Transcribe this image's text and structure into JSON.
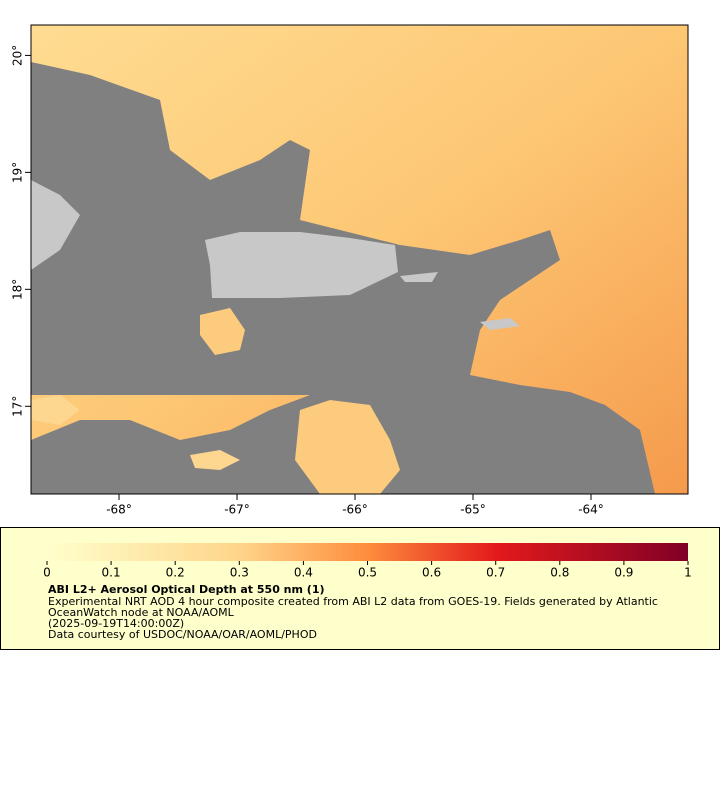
{
  "map": {
    "xlim": [
      -68.746,
      -63.178
    ],
    "ylim": [
      16.25,
      20.26
    ],
    "xticks": [
      {
        "value": -68,
        "label": "-68°"
      },
      {
        "value": -67,
        "label": "-67°"
      },
      {
        "value": -66,
        "label": "-66°"
      },
      {
        "value": -65,
        "label": "-65°"
      },
      {
        "value": -64,
        "label": "-64°"
      }
    ],
    "yticks": [
      {
        "value": 17,
        "label": "17°"
      },
      {
        "value": 18,
        "label": "18°"
      },
      {
        "value": 19,
        "label": "19°"
      },
      {
        "value": 20,
        "label": "20°"
      }
    ]
  },
  "legend": {
    "clim": [
      0,
      1
    ],
    "ticks": [
      0,
      0.1,
      0.2,
      0.3,
      0.4,
      0.5,
      0.6,
      0.7,
      0.8,
      0.9,
      1
    ],
    "title": "ABI L2+ Aerosol Optical Depth at 550 nm (1)",
    "lines": [
      "Experimental NRT AOD 4 hour composite created from ABI L2 data from GOES-19. Fields generated by Atlantic",
      "OceanWatch node at NOAA/AOML",
      "(2025-09-19T14:00:00Z)",
      "Data courtesy of USDOC/NOAA/OAR/AOML/PHOD"
    ]
  }
}
